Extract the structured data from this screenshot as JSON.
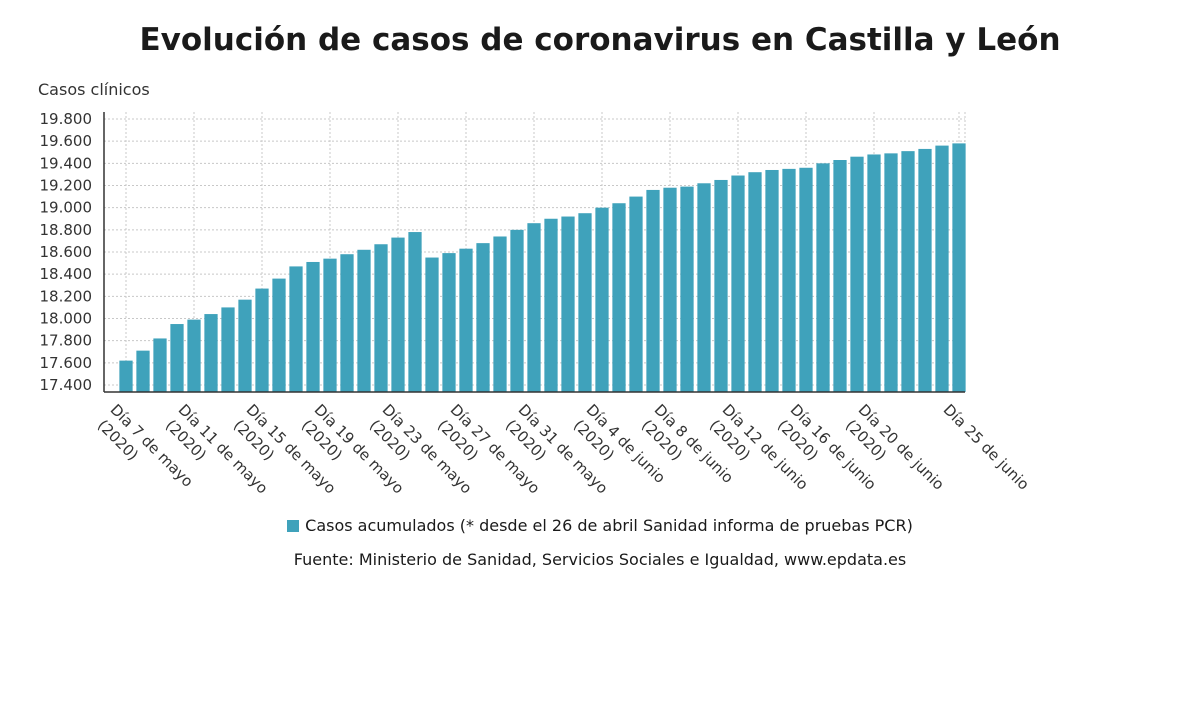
{
  "chart_data": {
    "type": "bar",
    "title": "Evolución de casos de coronavirus en Castilla y León",
    "ylabel": "Casos clínicos",
    "ylim": [
      17400,
      19800
    ],
    "yticks": [
      "17.400",
      "17.600",
      "17.800",
      "18.000",
      "18.200",
      "18.400",
      "18.600",
      "18.800",
      "19.000",
      "19.200",
      "19.400",
      "19.600",
      "19.800"
    ],
    "x_tick_labels": [
      {
        "index": 0,
        "lines": [
          "Día 7 de mayo",
          "(2020)"
        ]
      },
      {
        "index": 4,
        "lines": [
          "Día 11 de mayo",
          "(2020)"
        ]
      },
      {
        "index": 8,
        "lines": [
          "Día 15 de mayo",
          "(2020)"
        ]
      },
      {
        "index": 12,
        "lines": [
          "Día 19 de mayo",
          "(2020)"
        ]
      },
      {
        "index": 16,
        "lines": [
          "Día 23 de mayo",
          "(2020)"
        ]
      },
      {
        "index": 20,
        "lines": [
          "Día 27 de mayo",
          "(2020)"
        ]
      },
      {
        "index": 24,
        "lines": [
          "Día 31 de mayo",
          "(2020)"
        ]
      },
      {
        "index": 28,
        "lines": [
          "Día 4 de junio",
          "(2020)"
        ]
      },
      {
        "index": 32,
        "lines": [
          "Día 8 de junio",
          "(2020)"
        ]
      },
      {
        "index": 36,
        "lines": [
          "Día 12 de junio",
          "(2020)"
        ]
      },
      {
        "index": 40,
        "lines": [
          "Día 16 de junio",
          "(2020)"
        ]
      },
      {
        "index": 44,
        "lines": [
          "Día 20 de junio",
          "(2020)"
        ]
      },
      {
        "index": 49,
        "lines": [
          "Día 25 de junio"
        ]
      }
    ],
    "series": [
      {
        "name": "Casos acumulados (* desde el 26 de abril Sanidad informa de pruebas PCR)",
        "color": "#3fa2bb",
        "values": [
          17620,
          17710,
          17820,
          17950,
          17990,
          18040,
          18100,
          18170,
          18270,
          18360,
          18470,
          18510,
          18540,
          18580,
          18620,
          18670,
          18730,
          18780,
          18550,
          18590,
          18630,
          18680,
          18740,
          18800,
          18860,
          18900,
          18920,
          18950,
          19000,
          19040,
          19100,
          19160,
          19180,
          19190,
          19220,
          19250,
          19290,
          19320,
          19340,
          19350,
          19360,
          19400,
          19430,
          19460,
          19480,
          19490,
          19510,
          19530,
          19560,
          19580
        ]
      }
    ],
    "grid": true,
    "legend_position": "bottom"
  },
  "source_text": "Fuente: Ministerio de Sanidad, Servicios Sociales e Igualdad, www.epdata.es"
}
